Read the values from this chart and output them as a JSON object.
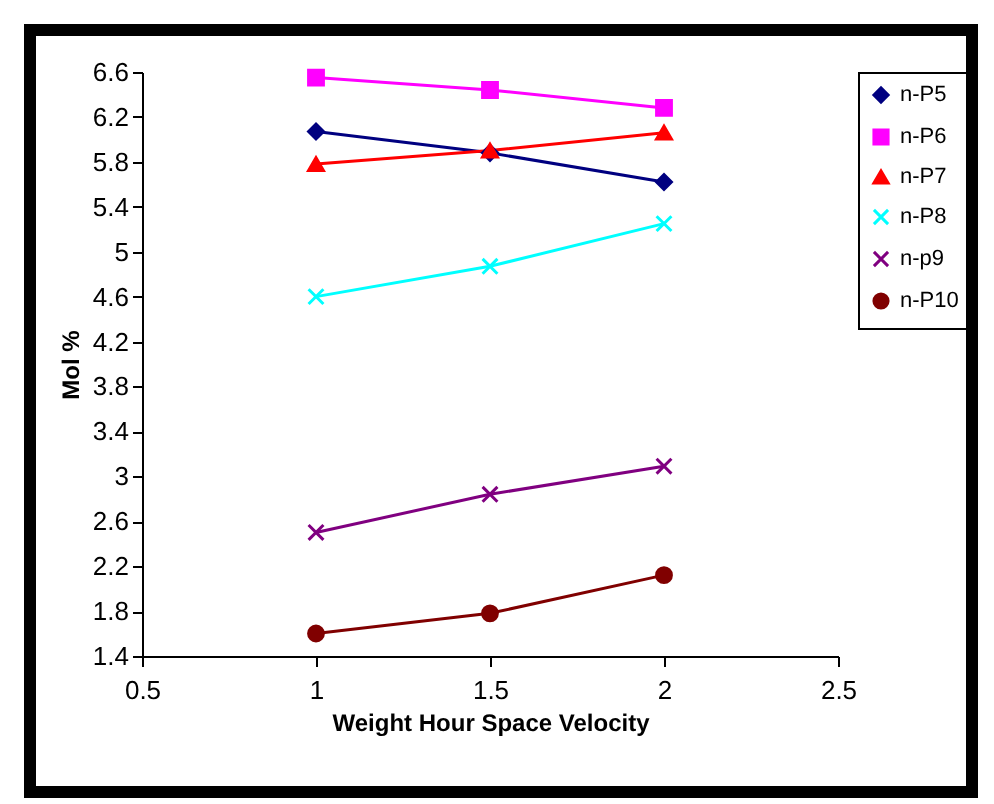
{
  "chart_data": {
    "type": "line",
    "xlabel": "Weight Hour Space Velocity",
    "ylabel": "Mol %",
    "x": [
      1,
      1.5,
      2
    ],
    "xlim": [
      0.5,
      2.5
    ],
    "xticks": [
      0.5,
      1,
      1.5,
      2,
      2.5
    ],
    "ylim": [
      1.4,
      6.6
    ],
    "yticks": [
      1.4,
      1.8,
      2.2,
      2.6,
      3,
      3.4,
      3.8,
      4.2,
      4.6,
      5,
      5.4,
      5.8,
      6.2,
      6.6
    ],
    "legend": "top right",
    "grid": false,
    "series": [
      {
        "name": "n-P5",
        "color": "#000080",
        "marker": "diamond",
        "values": [
          6.07,
          5.88,
          5.62
        ]
      },
      {
        "name": "n-P6",
        "color": "#ff00ff",
        "marker": "square",
        "values": [
          6.55,
          6.44,
          6.28
        ]
      },
      {
        "name": "n-P7",
        "color": "#ff0000",
        "marker": "triangle",
        "values": [
          5.78,
          5.9,
          6.06
        ]
      },
      {
        "name": "n-P8",
        "color": "#00ffff",
        "marker": "cross",
        "values": [
          4.6,
          4.87,
          5.25
        ]
      },
      {
        "name": "n-p9",
        "color": "#800080",
        "marker": "cross",
        "values": [
          2.5,
          2.84,
          3.09
        ]
      },
      {
        "name": "n-P10",
        "color": "#800000",
        "marker": "circle",
        "values": [
          1.6,
          1.78,
          2.12
        ]
      }
    ]
  }
}
